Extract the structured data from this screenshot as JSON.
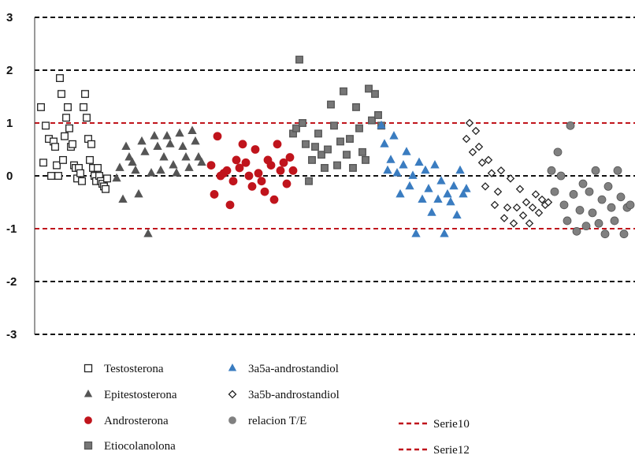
{
  "chart_data": {
    "type": "scatter",
    "ylim": [
      -3,
      3
    ],
    "yticks": [
      "3",
      "2",
      "1",
      "0",
      "-1",
      "-2",
      "-3"
    ],
    "grid": true,
    "legend_position": "bottom",
    "series": [
      {
        "name": "Testosterona",
        "color": "#222222",
        "fill": "#ffffff",
        "marker": "square-open",
        "x": [
          52,
          55,
          58,
          62,
          65,
          68,
          70,
          72,
          74,
          76,
          78,
          80,
          82,
          84,
          86,
          88,
          90,
          92,
          94,
          96,
          98,
          100,
          102,
          104,
          106,
          108,
          110,
          112,
          114,
          116,
          118,
          120,
          122,
          124,
          126,
          128,
          130,
          132,
          134,
          136
        ],
        "y": [
          1.3,
          0.25,
          0.95,
          0.7,
          0.0,
          0.65,
          0.55,
          0.2,
          0.0,
          1.85,
          1.55,
          0.3,
          0.75,
          1.1,
          1.3,
          0.9,
          0.55,
          0.6,
          0.2,
          0.15,
          -0.05,
          0.15,
          0.05,
          -0.1,
          1.3,
          1.55,
          1.1,
          0.7,
          0.3,
          0.6,
          0.15,
          0.0,
          -0.1,
          0.15,
          0.0,
          -0.1,
          -0.15,
          -0.2,
          -0.25,
          -0.05
        ]
      },
      {
        "name": "Epitestosterona",
        "color": "#555555",
        "fill": "#555555",
        "marker": "triangle",
        "x": [
          148,
          152,
          156,
          160,
          164,
          168,
          172,
          176,
          180,
          184,
          188,
          192,
          196,
          200,
          204,
          208,
          212,
          216,
          220,
          224,
          228,
          232,
          236,
          240,
          244,
          248,
          252,
          256
        ],
        "y": [
          -0.05,
          0.15,
          -0.45,
          0.55,
          0.35,
          0.25,
          0.1,
          -0.35,
          0.65,
          0.45,
          -1.1,
          0.05,
          0.75,
          0.55,
          0.1,
          0.35,
          0.75,
          0.6,
          0.2,
          0.05,
          0.8,
          0.55,
          0.35,
          0.15,
          0.85,
          0.65,
          0.35,
          0.25
        ]
      },
      {
        "name": "Androsterona",
        "color": "#c0141c",
        "fill": "#c0141c",
        "marker": "circle",
        "x": [
          268,
          272,
          276,
          280,
          284,
          288,
          292,
          296,
          300,
          304,
          308,
          312,
          316,
          320,
          324,
          328,
          332,
          336,
          340,
          344,
          348,
          352,
          356,
          360,
          364,
          368,
          372
        ],
        "y": [
          0.2,
          -0.35,
          0.75,
          0.0,
          0.05,
          0.1,
          -0.55,
          -0.1,
          0.3,
          0.15,
          0.6,
          0.25,
          0.0,
          -0.2,
          0.5,
          0.05,
          -0.1,
          -0.3,
          0.3,
          0.2,
          -0.45,
          0.6,
          0.1,
          0.25,
          -0.15,
          0.35,
          0.1
        ]
      },
      {
        "name": "Etiocolanolona",
        "color": "#555555",
        "fill": "#777777",
        "marker": "square-filled",
        "x": [
          372,
          376,
          380,
          384,
          388,
          392,
          396,
          400,
          404,
          408,
          412,
          416,
          420,
          424,
          428,
          432,
          436,
          440,
          444,
          448,
          452,
          456,
          460,
          464,
          468,
          472,
          476,
          480,
          484
        ],
        "y": [
          0.8,
          0.9,
          2.2,
          1.0,
          0.6,
          -0.1,
          0.3,
          0.55,
          0.8,
          0.4,
          0.15,
          0.5,
          1.35,
          0.95,
          0.2,
          0.65,
          1.6,
          0.4,
          0.7,
          0.15,
          1.3,
          0.9,
          0.45,
          0.3,
          1.65,
          1.05,
          1.55,
          1.15,
          0.95
        ]
      },
      {
        "name": "3a5a-androstandiol",
        "color": "#3a7cc0",
        "fill": "#3a7cc0",
        "marker": "triangle",
        "x": [
          484,
          488,
          492,
          496,
          500,
          504,
          508,
          512,
          516,
          520,
          524,
          528,
          532,
          536,
          540,
          544,
          548,
          552,
          556,
          560,
          564,
          568,
          572,
          576,
          580,
          584,
          588,
          592
        ],
        "y": [
          0.95,
          0.6,
          0.1,
          0.3,
          0.75,
          0.05,
          -0.35,
          0.2,
          0.45,
          -0.2,
          0.0,
          -1.1,
          0.25,
          -0.45,
          0.1,
          -0.25,
          -0.7,
          0.2,
          -0.45,
          -0.1,
          -1.1,
          -0.35,
          -0.5,
          -0.2,
          -0.75,
          0.1,
          -0.35,
          -0.25
        ]
      },
      {
        "name": "3a5b-androstandiol",
        "color": "#222222",
        "fill": "#ffffff",
        "marker": "diamond-open",
        "x": [
          592,
          596,
          600,
          604,
          608,
          612,
          616,
          620,
          624,
          628,
          632,
          636,
          640,
          644,
          648,
          652,
          656,
          660,
          664,
          668,
          672,
          676,
          680,
          684,
          688,
          692,
          696
        ],
        "y": [
          0.7,
          1.0,
          0.45,
          0.85,
          0.55,
          0.25,
          -0.2,
          0.3,
          0.05,
          -0.55,
          -0.3,
          0.1,
          -0.8,
          -0.6,
          -0.05,
          -0.9,
          -0.6,
          -0.25,
          -0.75,
          -0.5,
          -0.9,
          -0.6,
          -0.35,
          -0.7,
          -0.45,
          -0.55,
          -0.5
        ]
      },
      {
        "name": "relacion T/E",
        "color": "#555555",
        "fill": "#808080",
        "marker": "circle",
        "x": [
          700,
          704,
          708,
          712,
          716,
          720,
          724,
          728,
          732,
          736,
          740,
          744,
          748,
          752,
          756,
          760,
          764,
          768,
          772,
          776,
          780,
          784,
          788,
          792,
          796,
          800
        ],
        "y": [
          0.1,
          -0.3,
          0.45,
          0.0,
          -0.55,
          -0.85,
          0.95,
          -0.35,
          -1.05,
          -0.65,
          -0.15,
          -0.95,
          -0.3,
          -0.7,
          0.1,
          -0.9,
          -0.45,
          -1.1,
          -0.2,
          -0.6,
          -0.85,
          0.1,
          -0.4,
          -1.1,
          -0.6,
          -0.55
        ]
      }
    ],
    "reference_lines": [
      {
        "name": "Serie10",
        "y": 1,
        "color": "#c0141c"
      },
      {
        "name": "Serie12",
        "y": -1,
        "color": "#c0141c"
      }
    ],
    "gridlines": [
      3,
      2,
      0,
      -2,
      -3
    ]
  },
  "legend": {
    "items": [
      {
        "label": "Testosterona",
        "marker": "square-open",
        "color": "#222222"
      },
      {
        "label": "Epitestosterona",
        "marker": "triangle",
        "color": "#555555"
      },
      {
        "label": "Androsterona",
        "marker": "circle",
        "color": "#c0141c"
      },
      {
        "label": "Etiocolanolona",
        "marker": "square-filled",
        "color": "#555555"
      },
      {
        "label": "3a5a-androstandiol",
        "marker": "triangle",
        "color": "#3a7cc0"
      },
      {
        "label": "3a5b-androstandiol",
        "marker": "diamond-open",
        "color": "#222222"
      },
      {
        "label": "relacion T/E",
        "marker": "circle",
        "color": "#808080"
      },
      {
        "label": "Serie10",
        "marker": "dashed-line",
        "color": "#c0141c"
      },
      {
        "label": "Serie12",
        "marker": "dashed-line",
        "color": "#c0141c"
      }
    ]
  }
}
